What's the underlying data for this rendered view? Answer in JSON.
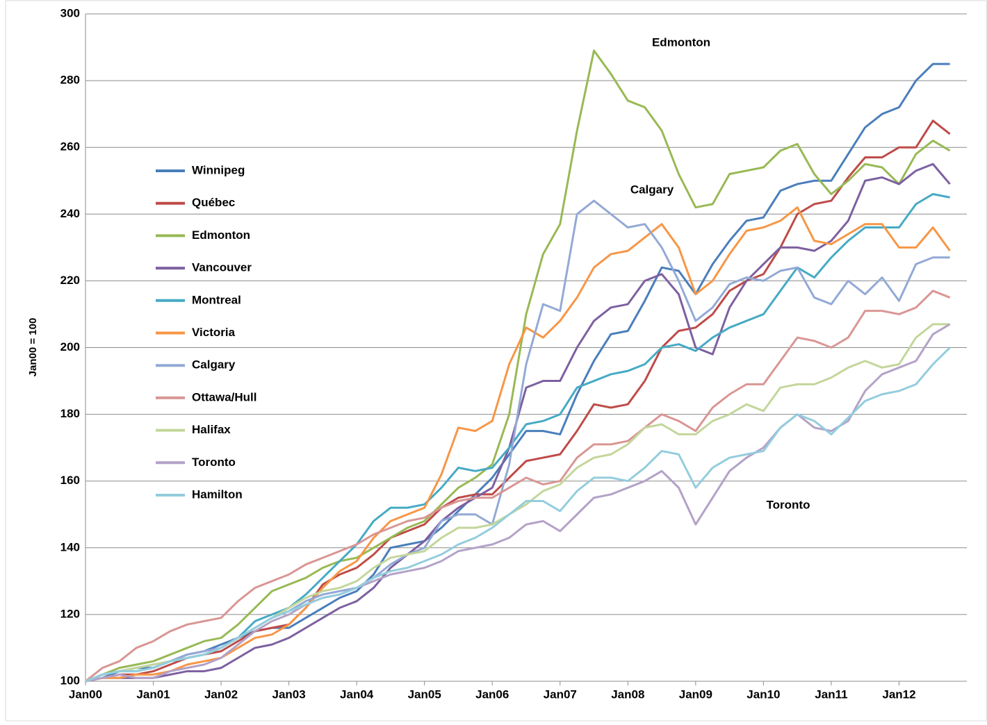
{
  "chart_data": {
    "type": "line",
    "annotations": [
      "Edmonton",
      "Calgary",
      "Toronto"
    ],
    "y_label": "Jan00 = 100",
    "categories": [
      "Jan00",
      null,
      null,
      null,
      "Jan01",
      null,
      null,
      null,
      "Jan02",
      null,
      null,
      null,
      "Jan03",
      null,
      null,
      null,
      "Jan04",
      null,
      null,
      null,
      "Jan05",
      null,
      null,
      null,
      "Jan06",
      null,
      null,
      null,
      "Jan07",
      null,
      null,
      null,
      "Jan08",
      null,
      null,
      null,
      "Jan09",
      null,
      null,
      null,
      "Jan10",
      null,
      null,
      null,
      "Jan11",
      null,
      null,
      null,
      "Jan12",
      null,
      null,
      null
    ],
    "ylim": [
      100,
      300
    ],
    "yticks": [
      100,
      120,
      140,
      160,
      180,
      200,
      220,
      240,
      260,
      280,
      300
    ],
    "grid": true,
    "legend": "left",
    "series": [
      {
        "name": "Winnipeg",
        "color": "#4a7ebb",
        "values": [
          100,
          101,
          103,
          104,
          104,
          106,
          108,
          109,
          111,
          113,
          115,
          116,
          116,
          119,
          122,
          125,
          127,
          132,
          140,
          141,
          142,
          146,
          151,
          156,
          161,
          168,
          175,
          175,
          174,
          186,
          196,
          204,
          205,
          214,
          224,
          223,
          216,
          225,
          232,
          238,
          239,
          247,
          249,
          250,
          250,
          258,
          266,
          270,
          272,
          280,
          285,
          285
        ]
      },
      {
        "name": "Québec",
        "color": "#be4b48",
        "values": [
          100,
          101,
          102,
          102,
          103,
          105,
          107,
          108,
          109,
          112,
          115,
          116,
          117,
          122,
          129,
          132,
          134,
          138,
          143,
          145,
          147,
          152,
          155,
          156,
          156,
          161,
          166,
          167,
          168,
          175,
          183,
          182,
          183,
          190,
          200,
          205,
          206,
          210,
          217,
          220,
          222,
          230,
          240,
          243,
          244,
          251,
          257,
          257,
          260,
          260,
          268,
          264
        ]
      },
      {
        "name": "Edmonton",
        "color": "#98b954",
        "values": [
          100,
          102,
          104,
          105,
          106,
          108,
          110,
          112,
          113,
          117,
          122,
          127,
          129,
          131,
          134,
          136,
          137,
          140,
          143,
          146,
          148,
          153,
          158,
          161,
          165,
          180,
          210,
          228,
          237,
          265,
          289,
          282,
          274,
          272,
          265,
          252,
          242,
          243,
          252,
          253,
          254,
          259,
          261,
          252,
          246,
          250,
          255,
          254,
          249,
          258,
          262,
          259
        ]
      },
      {
        "name": "Vancouver",
        "color": "#7d60a0",
        "values": [
          100,
          101,
          101,
          101,
          101,
          102,
          103,
          103,
          104,
          107,
          110,
          111,
          113,
          116,
          119,
          122,
          124,
          128,
          134,
          138,
          142,
          148,
          152,
          155,
          158,
          170,
          188,
          190,
          190,
          200,
          208,
          212,
          213,
          220,
          222,
          216,
          200,
          198,
          212,
          220,
          225,
          230,
          230,
          229,
          232,
          238,
          250,
          251,
          249,
          253,
          255,
          249
        ]
      },
      {
        "name": "Montreal",
        "color": "#46aac5",
        "values": [
          100,
          102,
          103,
          103,
          104,
          106,
          107,
          108,
          110,
          113,
          118,
          120,
          122,
          126,
          131,
          136,
          141,
          148,
          152,
          152,
          153,
          158,
          164,
          163,
          164,
          170,
          177,
          178,
          180,
          188,
          190,
          192,
          193,
          195,
          200,
          201,
          199,
          203,
          206,
          208,
          210,
          217,
          224,
          221,
          227,
          232,
          236,
          236,
          236,
          243,
          246,
          245
        ]
      },
      {
        "name": "Victoria",
        "color": "#f79646",
        "values": [
          100,
          101,
          101,
          102,
          102,
          103,
          105,
          106,
          107,
          110,
          113,
          114,
          117,
          122,
          128,
          133,
          136,
          143,
          148,
          150,
          152,
          162,
          176,
          175,
          178,
          195,
          206,
          203,
          208,
          215,
          224,
          228,
          229,
          233,
          237,
          230,
          216,
          220,
          228,
          235,
          236,
          238,
          242,
          232,
          231,
          234,
          237,
          237,
          230,
          230,
          236,
          229
        ]
      },
      {
        "name": "Calgary",
        "color": "#93a9d6",
        "values": [
          100,
          102,
          103,
          104,
          105,
          106,
          108,
          109,
          110,
          113,
          116,
          119,
          121,
          124,
          126,
          127,
          128,
          131,
          135,
          138,
          140,
          148,
          150,
          150,
          147,
          165,
          195,
          213,
          211,
          240,
          244,
          240,
          236,
          237,
          230,
          220,
          208,
          212,
          219,
          221,
          220,
          223,
          224,
          215,
          213,
          220,
          216,
          221,
          214,
          225,
          227,
          227
        ]
      },
      {
        "name": "Ottawa/Hull",
        "color": "#d99694",
        "values": [
          100,
          104,
          106,
          110,
          112,
          115,
          117,
          118,
          119,
          124,
          128,
          130,
          132,
          135,
          137,
          139,
          141,
          144,
          146,
          148,
          149,
          152,
          154,
          155,
          155,
          158,
          161,
          159,
          160,
          167,
          171,
          171,
          172,
          176,
          180,
          178,
          175,
          182,
          186,
          189,
          189,
          196,
          203,
          202,
          200,
          203,
          211,
          211,
          210,
          212,
          217,
          215
        ]
      },
      {
        "name": "Halifax",
        "color": "#c3d69b",
        "values": [
          100,
          102,
          103,
          104,
          105,
          106,
          107,
          108,
          110,
          113,
          116,
          119,
          122,
          125,
          127,
          128,
          130,
          134,
          137,
          138,
          139,
          143,
          146,
          146,
          147,
          150,
          153,
          157,
          159,
          164,
          167,
          168,
          171,
          176,
          177,
          174,
          174,
          178,
          180,
          183,
          181,
          188,
          189,
          189,
          191,
          194,
          196,
          194,
          195,
          203,
          207,
          207
        ]
      },
      {
        "name": "Toronto",
        "color": "#b3a2c7",
        "values": [
          100,
          101,
          102,
          101,
          101,
          103,
          104,
          105,
          107,
          111,
          115,
          118,
          120,
          123,
          125,
          126,
          128,
          130,
          132,
          133,
          134,
          136,
          139,
          140,
          141,
          143,
          147,
          148,
          145,
          150,
          155,
          156,
          158,
          160,
          163,
          158,
          147,
          155,
          163,
          167,
          170,
          176,
          180,
          176,
          175,
          178,
          187,
          192,
          194,
          196,
          204,
          207
        ]
      },
      {
        "name": "Hamilton",
        "color": "#93cddd",
        "values": [
          100,
          102,
          103,
          103,
          104,
          106,
          107,
          108,
          110,
          113,
          116,
          119,
          121,
          123,
          125,
          126,
          128,
          131,
          133,
          134,
          136,
          138,
          141,
          143,
          146,
          150,
          154,
          154,
          151,
          157,
          161,
          161,
          160,
          164,
          169,
          168,
          158,
          164,
          167,
          168,
          169,
          176,
          180,
          178,
          174,
          179,
          184,
          186,
          187,
          189,
          195,
          200
        ]
      }
    ]
  }
}
